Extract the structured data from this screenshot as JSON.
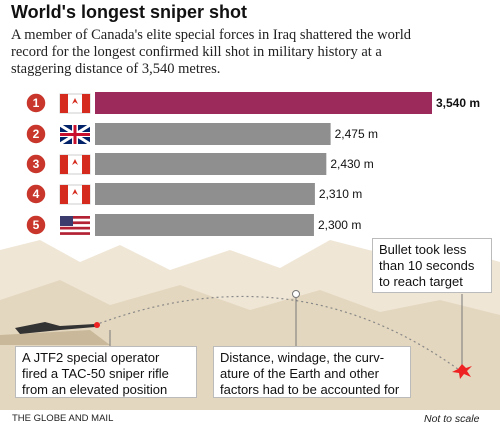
{
  "chart_data": {
    "type": "bar",
    "orientation": "horizontal",
    "title": "World's longest sniper shot",
    "subtitle": [
      "A member of Canada's elite special forces in Iraq shattered the world",
      "record for the longest confirmed kill shot in military history at a",
      "staggering distance of 3,540 metres."
    ],
    "categories": [
      "1",
      "2",
      "3",
      "4",
      "5"
    ],
    "values": [
      3540,
      2475,
      2430,
      2310,
      2300
    ],
    "value_labels": [
      "3,540 m",
      "2,475 m",
      "2,430 m",
      "2,310 m",
      "2,300 m"
    ],
    "colors": [
      "#9c2b5b",
      "#8f8f8f",
      "#8f8f8f",
      "#8f8f8f",
      "#8f8f8f"
    ],
    "annotations": [
      {
        "lines": [
          "A JTF2 special operator",
          "fired a TAC-50 sniper rifle",
          "from an elevated position"
        ]
      },
      {
        "lines": [
          "Distance, windage, the curv-",
          "ature of the Earth and other",
          "factors had to be accounted for"
        ]
      },
      {
        "lines": [
          "Bullet took less",
          "than 10 seconds",
          "to reach target"
        ]
      }
    ],
    "source": "THE GLOBE AND MAIL",
    "note": "Not to scale"
  }
}
